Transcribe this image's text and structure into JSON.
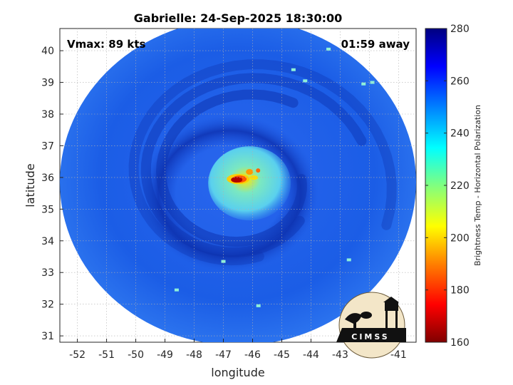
{
  "title": "Gabrielle: 24-Sep-2025 18:30:00",
  "vmax_text": "Vmax: 89 kts",
  "time_away_text": "01:59 away",
  "x_axis": {
    "label": "longitude",
    "min": -52.6,
    "max": -40.4,
    "ticks": [
      -52,
      -51,
      -50,
      -49,
      -48,
      -47,
      -46,
      -45,
      -44,
      -43,
      -42,
      -41
    ],
    "tick_labels": [
      "-52",
      "-51",
      "-50",
      "-49",
      "-48",
      "-47",
      "-46",
      "-45",
      "-44",
      "-43",
      "-42",
      "-41"
    ]
  },
  "y_axis": {
    "label": "latitude",
    "min": 30.8,
    "max": 40.7,
    "ticks": [
      31,
      32,
      33,
      34,
      35,
      36,
      37,
      38,
      39,
      40
    ],
    "tick_labels": [
      "31",
      "32",
      "33",
      "34",
      "35",
      "36",
      "37",
      "38",
      "39",
      "40"
    ]
  },
  "grid": true,
  "storm_center": {
    "lon": -46.3,
    "lat": 35.95
  },
  "swath": {
    "center_lon": -46.5,
    "center_lat": 35.85,
    "radius_lon": 6.1,
    "radius_lat": 5.15
  },
  "colorbar": {
    "label": "Brightness Temp - Horizontal Polarization",
    "min": 160,
    "max": 280,
    "ticks": [
      160,
      180,
      200,
      220,
      240,
      260,
      280
    ],
    "tick_labels": [
      "160",
      "180",
      "200",
      "220",
      "240",
      "260",
      "280"
    ],
    "colormap": [
      "#800000",
      "#ff0000",
      "#ff8000",
      "#ffff00",
      "#80ff80",
      "#00ffff",
      "#0080ff",
      "#0000ff",
      "#000080"
    ]
  },
  "logo": {
    "text": "CIMSS",
    "icon": "cimss-logo-icon"
  },
  "colors": {
    "background_field": "#1a5fe6",
    "eye_ring": "#4fd9e8",
    "eyewall": "#cc1a0d"
  }
}
